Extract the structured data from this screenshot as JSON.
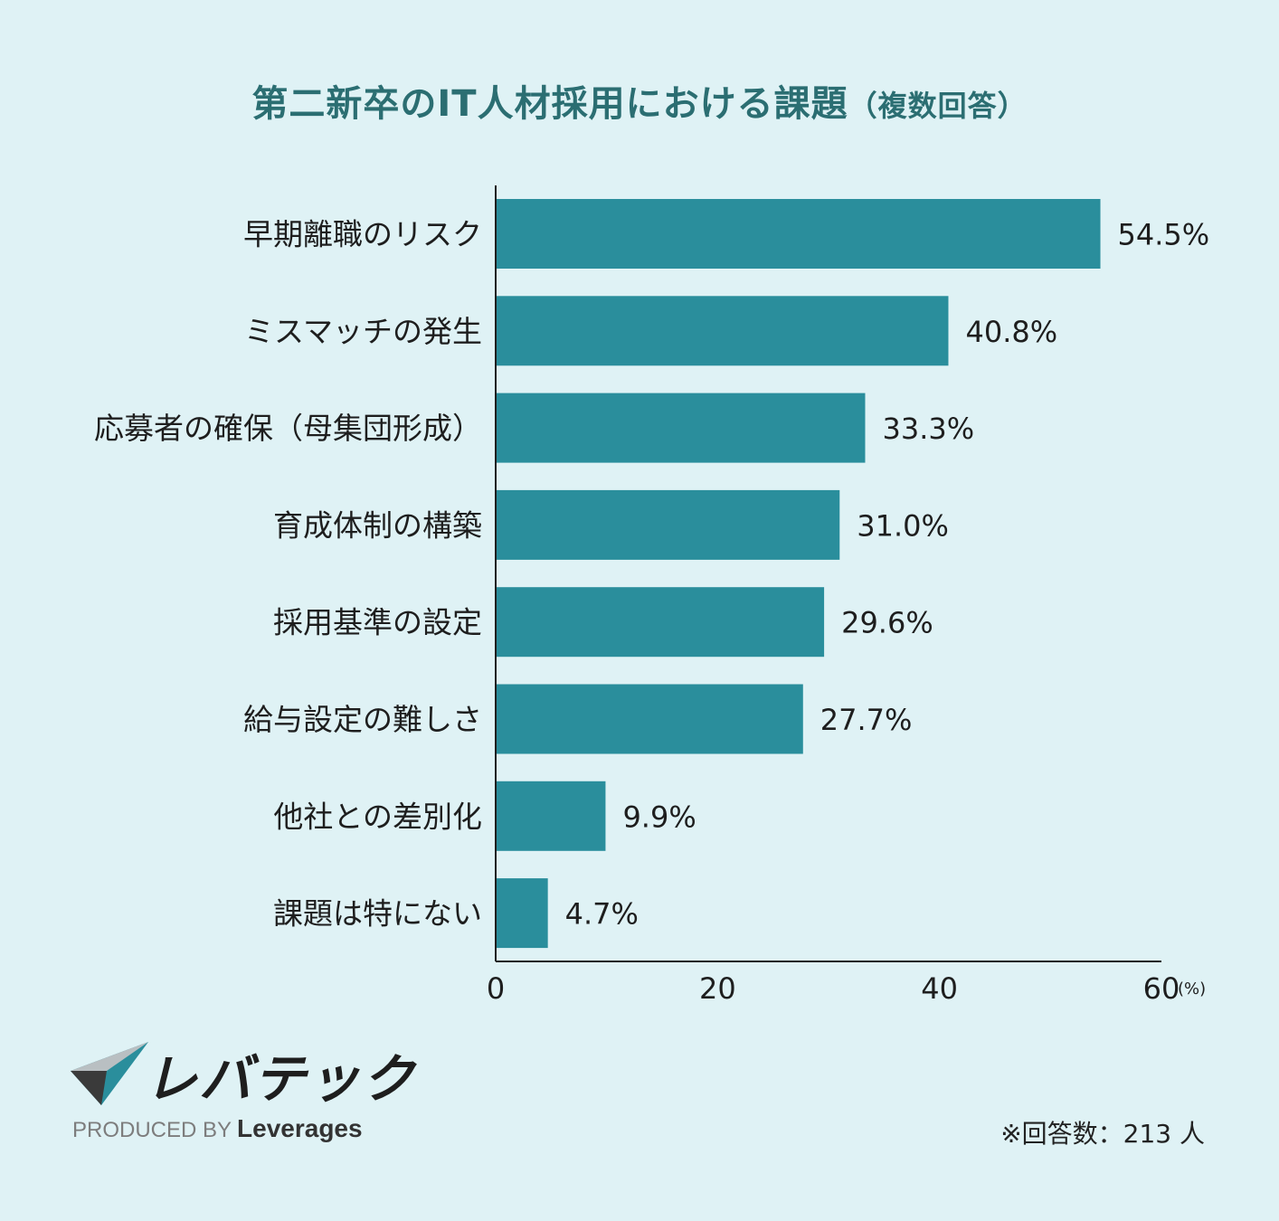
{
  "title": {
    "main": "第二新卒のIT人材採用における課題",
    "sub": "（複数回答）"
  },
  "chart_data": {
    "type": "bar",
    "orientation": "horizontal",
    "categories": [
      "早期離職のリスク",
      "ミスマッチの発生",
      "応募者の確保（母集団形成）",
      "育成体制の構築",
      "採用基準の設定",
      "給与設定の難しさ",
      "他社との差別化",
      "課題は特にない"
    ],
    "values": [
      54.5,
      40.8,
      33.3,
      31.0,
      29.6,
      27.7,
      9.9,
      4.7
    ],
    "value_labels": [
      "54.5%",
      "40.8%",
      "33.3%",
      "31.0%",
      "29.6%",
      "27.7%",
      "9.9%",
      "4.7%"
    ],
    "xlim": [
      0,
      60
    ],
    "xticks": [
      0,
      20,
      40,
      60
    ],
    "xunit": "(%)",
    "bar_color": "#2a8e9c"
  },
  "logo": {
    "brand_jp": "レバテック",
    "produced_by": "PRODUCED BY",
    "brand_en": "Leverages"
  },
  "note": "※回答数：213 人"
}
